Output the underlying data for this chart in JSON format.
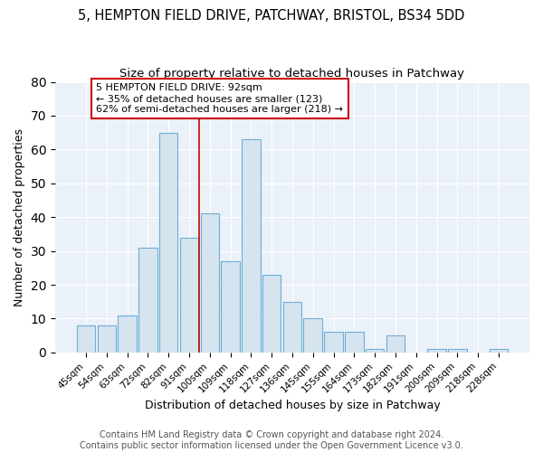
{
  "title1": "5, HEMPTON FIELD DRIVE, PATCHWAY, BRISTOL, BS34 5DD",
  "title2": "Size of property relative to detached houses in Patchway",
  "xlabel": "Distribution of detached houses by size in Patchway",
  "ylabel": "Number of detached properties",
  "bar_labels": [
    "45sqm",
    "54sqm",
    "63sqm",
    "72sqm",
    "82sqm",
    "91sqm",
    "100sqm",
    "109sqm",
    "118sqm",
    "127sqm",
    "136sqm",
    "145sqm",
    "155sqm",
    "164sqm",
    "173sqm",
    "182sqm",
    "191sqm",
    "200sqm",
    "209sqm",
    "218sqm",
    "228sqm"
  ],
  "bar_values": [
    8,
    8,
    11,
    31,
    65,
    34,
    41,
    27,
    63,
    23,
    15,
    10,
    6,
    6,
    1,
    5,
    0,
    1,
    1,
    0,
    1
  ],
  "bar_color": "#d6e4f0",
  "bar_edgecolor": "#6daed4",
  "vline_x": 5.5,
  "vline_color": "#cc0000",
  "annotation_text": "5 HEMPTON FIELD DRIVE: 92sqm\n← 35% of detached houses are smaller (123)\n62% of semi-detached houses are larger (218) →",
  "annotation_box_facecolor": "white",
  "annotation_box_edgecolor": "#cc0000",
  "ylim": [
    0,
    80
  ],
  "yticks": [
    0,
    10,
    20,
    30,
    40,
    50,
    60,
    70,
    80
  ],
  "footer_line1": "Contains HM Land Registry data © Crown copyright and database right 2024.",
  "footer_line2": "Contains public sector information licensed under the Open Government Licence v3.0.",
  "fig_bg_color": "#ffffff",
  "plot_bg_color": "#eaf1f8",
  "title_fontsize": 10.5,
  "subtitle_fontsize": 9.5,
  "axis_label_fontsize": 9,
  "tick_fontsize": 7.5,
  "footer_fontsize": 7,
  "annotation_fontsize": 8
}
